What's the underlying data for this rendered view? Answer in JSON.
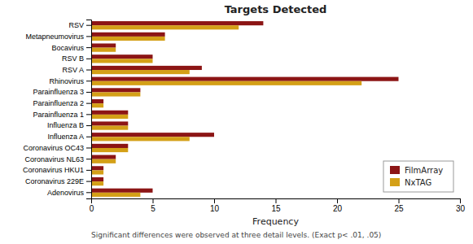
{
  "chart_data": {
    "type": "bar",
    "orientation": "horizontal",
    "title": "Targets Detected",
    "x_label": "Frequency",
    "categories": [
      "Adenovirus",
      "Coronavirus 229E",
      "Coronavirus HKU1",
      "Coronavirus NL63",
      "Coronavirus OC43",
      "Influenza A",
      "Influenza B",
      "Parainfluenza 1",
      "Parainfluenza 2",
      "Parainfluenza 3",
      "Rhinovirus",
      "RSV A",
      "RSV B",
      "Bocavirus",
      "Metapneumovirus",
      "RSV"
    ],
    "series": [
      {
        "name": "FilmArray",
        "color": "#8c1515",
        "values": [
          5,
          1,
          1,
          2,
          3,
          10,
          3,
          3,
          1,
          4,
          25,
          9,
          5,
          2,
          6,
          14
        ]
      },
      {
        "name": "NxTAG",
        "color": "#d4a017",
        "values": [
          4,
          1,
          1,
          2,
          3,
          8,
          3,
          3,
          1,
          4,
          22,
          8,
          5,
          2,
          6,
          12
        ]
      }
    ],
    "xlim": [
      0,
      30
    ],
    "xticks": [
      0,
      5,
      10,
      15,
      20,
      25,
      30
    ],
    "grid": false,
    "legend": "lower right",
    "annotations": [
      "Significant differences were observed at three detail levels. (Exact p< .01, .05)"
    ]
  }
}
